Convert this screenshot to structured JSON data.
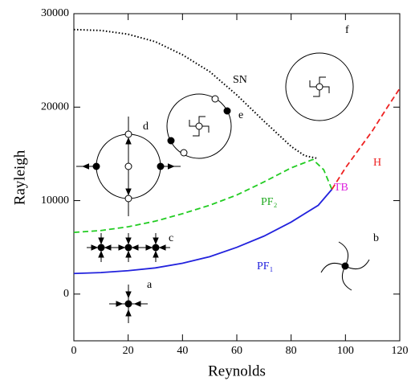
{
  "chart_data": {
    "type": "line",
    "x_label": "Reynolds",
    "y_label": "Rayleigh",
    "xlim": [
      0,
      120
    ],
    "ylim": [
      -5000,
      30000
    ],
    "xticks": [
      0,
      20,
      40,
      60,
      80,
      100,
      120
    ],
    "yticks": [
      0,
      10000,
      20000,
      30000
    ],
    "series": [
      {
        "color": "#000000",
        "style": "dotted",
        "x": [
          0,
          10,
          20,
          30,
          40,
          50,
          60,
          70,
          80,
          85,
          90
        ],
        "values": [
          28300,
          28200,
          27800,
          27000,
          25600,
          23800,
          21300,
          18500,
          15800,
          14800,
          14500
        ]
      },
      {
        "color": "#22cc22",
        "style": "dashed",
        "x": [
          0,
          10,
          20,
          30,
          40,
          50,
          60,
          70,
          80,
          88,
          92,
          95
        ],
        "values": [
          6600,
          6800,
          7200,
          7800,
          8600,
          9500,
          10600,
          12000,
          13500,
          14400,
          13300,
          11200
        ]
      },
      {
        "color": "#2222dd",
        "style": "solid",
        "x": [
          0,
          10,
          20,
          30,
          40,
          50,
          60,
          70,
          80,
          90,
          95
        ],
        "values": [
          2200,
          2300,
          2500,
          2800,
          3300,
          4000,
          5000,
          6200,
          7700,
          9500,
          11200
        ]
      },
      {
        "color": "#ee2222",
        "style": "dashed",
        "x": [
          95,
          100,
          105,
          110,
          115,
          120
        ],
        "values": [
          11200,
          13500,
          15500,
          17500,
          19800,
          22000
        ]
      }
    ],
    "annotations": [
      {
        "text": "SN",
        "color": "#000000"
      },
      {
        "text": "PF₂",
        "color": "#22aa22"
      },
      {
        "text": "PF₁",
        "color": "#2222dd"
      },
      {
        "text": "TB",
        "color": "#dd22dd"
      },
      {
        "text": "H",
        "color": "#ee2222"
      },
      {
        "text": "a",
        "color": "#000000"
      },
      {
        "text": "b",
        "color": "#000000"
      },
      {
        "text": "c",
        "color": "#000000"
      },
      {
        "text": "d",
        "color": "#000000"
      },
      {
        "text": "e",
        "color": "#000000"
      },
      {
        "text": "f",
        "color": "#000000"
      }
    ]
  }
}
